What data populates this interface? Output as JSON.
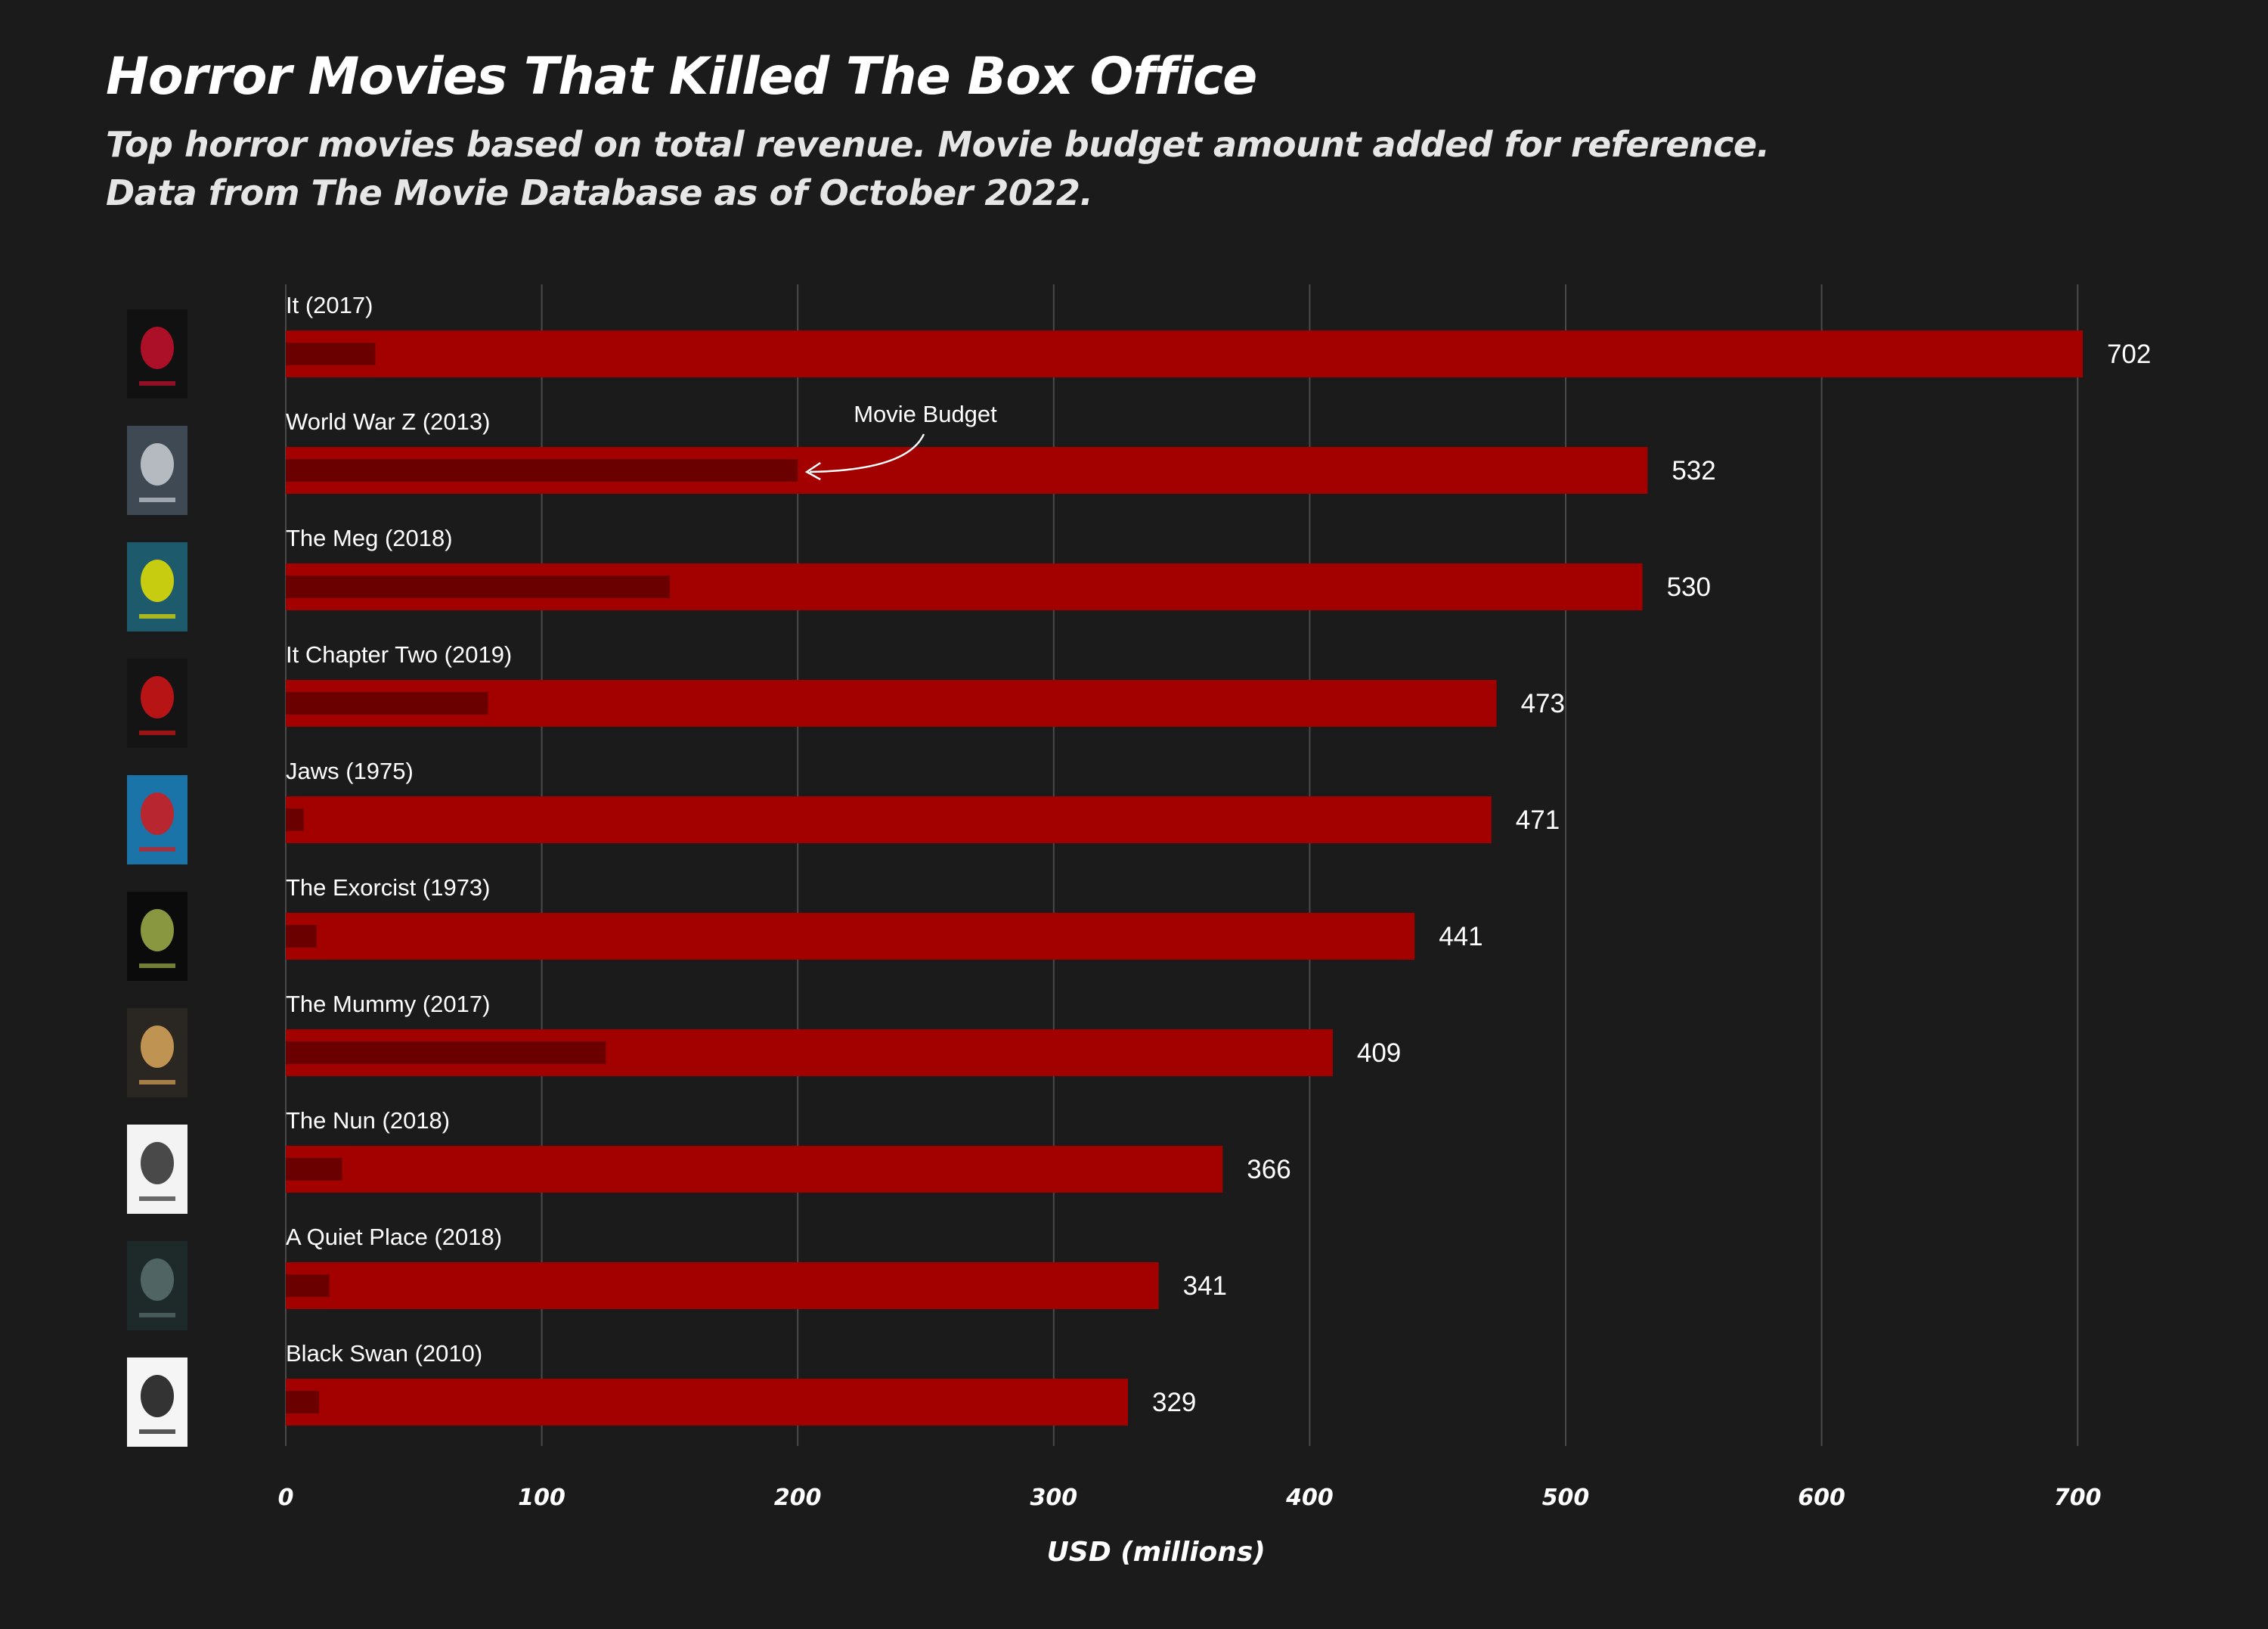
{
  "chart_data": {
    "type": "bar",
    "orientation": "horizontal",
    "title": "Horror Movies That Killed The Box Office",
    "subtitle_lines": [
      "Top horror movies based on total revenue. Movie budget amount added for reference.",
      "Data from The Movie Database as of October 2022."
    ],
    "xlabel": "USD (millions)",
    "ylabel": "",
    "xlim": [
      0,
      720
    ],
    "xticks": [
      0,
      100,
      200,
      300,
      400,
      500,
      600,
      700
    ],
    "grid": "vertical",
    "annotation": {
      "text": "Movie Budget",
      "target_category": "World War Z (2013)",
      "series": "Budget"
    },
    "categories": [
      "It (2017)",
      "World War Z (2013)",
      "The Meg (2018)",
      "It Chapter Two (2019)",
      "Jaws (1975)",
      "The Exorcist (1973)",
      "The Mummy (2017)",
      "The Nun (2018)",
      "A Quiet Place (2018)",
      "Black Swan (2010)"
    ],
    "series": [
      {
        "key": "Revenue",
        "values": [
          702,
          532,
          530,
          473,
          471,
          441,
          409,
          366,
          341,
          329
        ],
        "color": "#a30000"
      },
      {
        "key": "Budget",
        "values": [
          35,
          200,
          150,
          79,
          7,
          12,
          125,
          22,
          17,
          13
        ],
        "color": "#6b0000"
      }
    ],
    "poster_icons": [
      "it-2017-poster-icon",
      "world-war-z-poster-icon",
      "the-meg-poster-icon",
      "it-chapter-two-poster-icon",
      "jaws-poster-icon",
      "the-exorcist-poster-icon",
      "the-mummy-poster-icon",
      "the-nun-poster-icon",
      "a-quiet-place-poster-icon",
      "black-swan-poster-icon"
    ],
    "colors": {
      "background": "#1b1b1b",
      "gridline": "#4a4a4a",
      "text": "#ffffff",
      "subtitle": "#e6e6e6"
    }
  }
}
